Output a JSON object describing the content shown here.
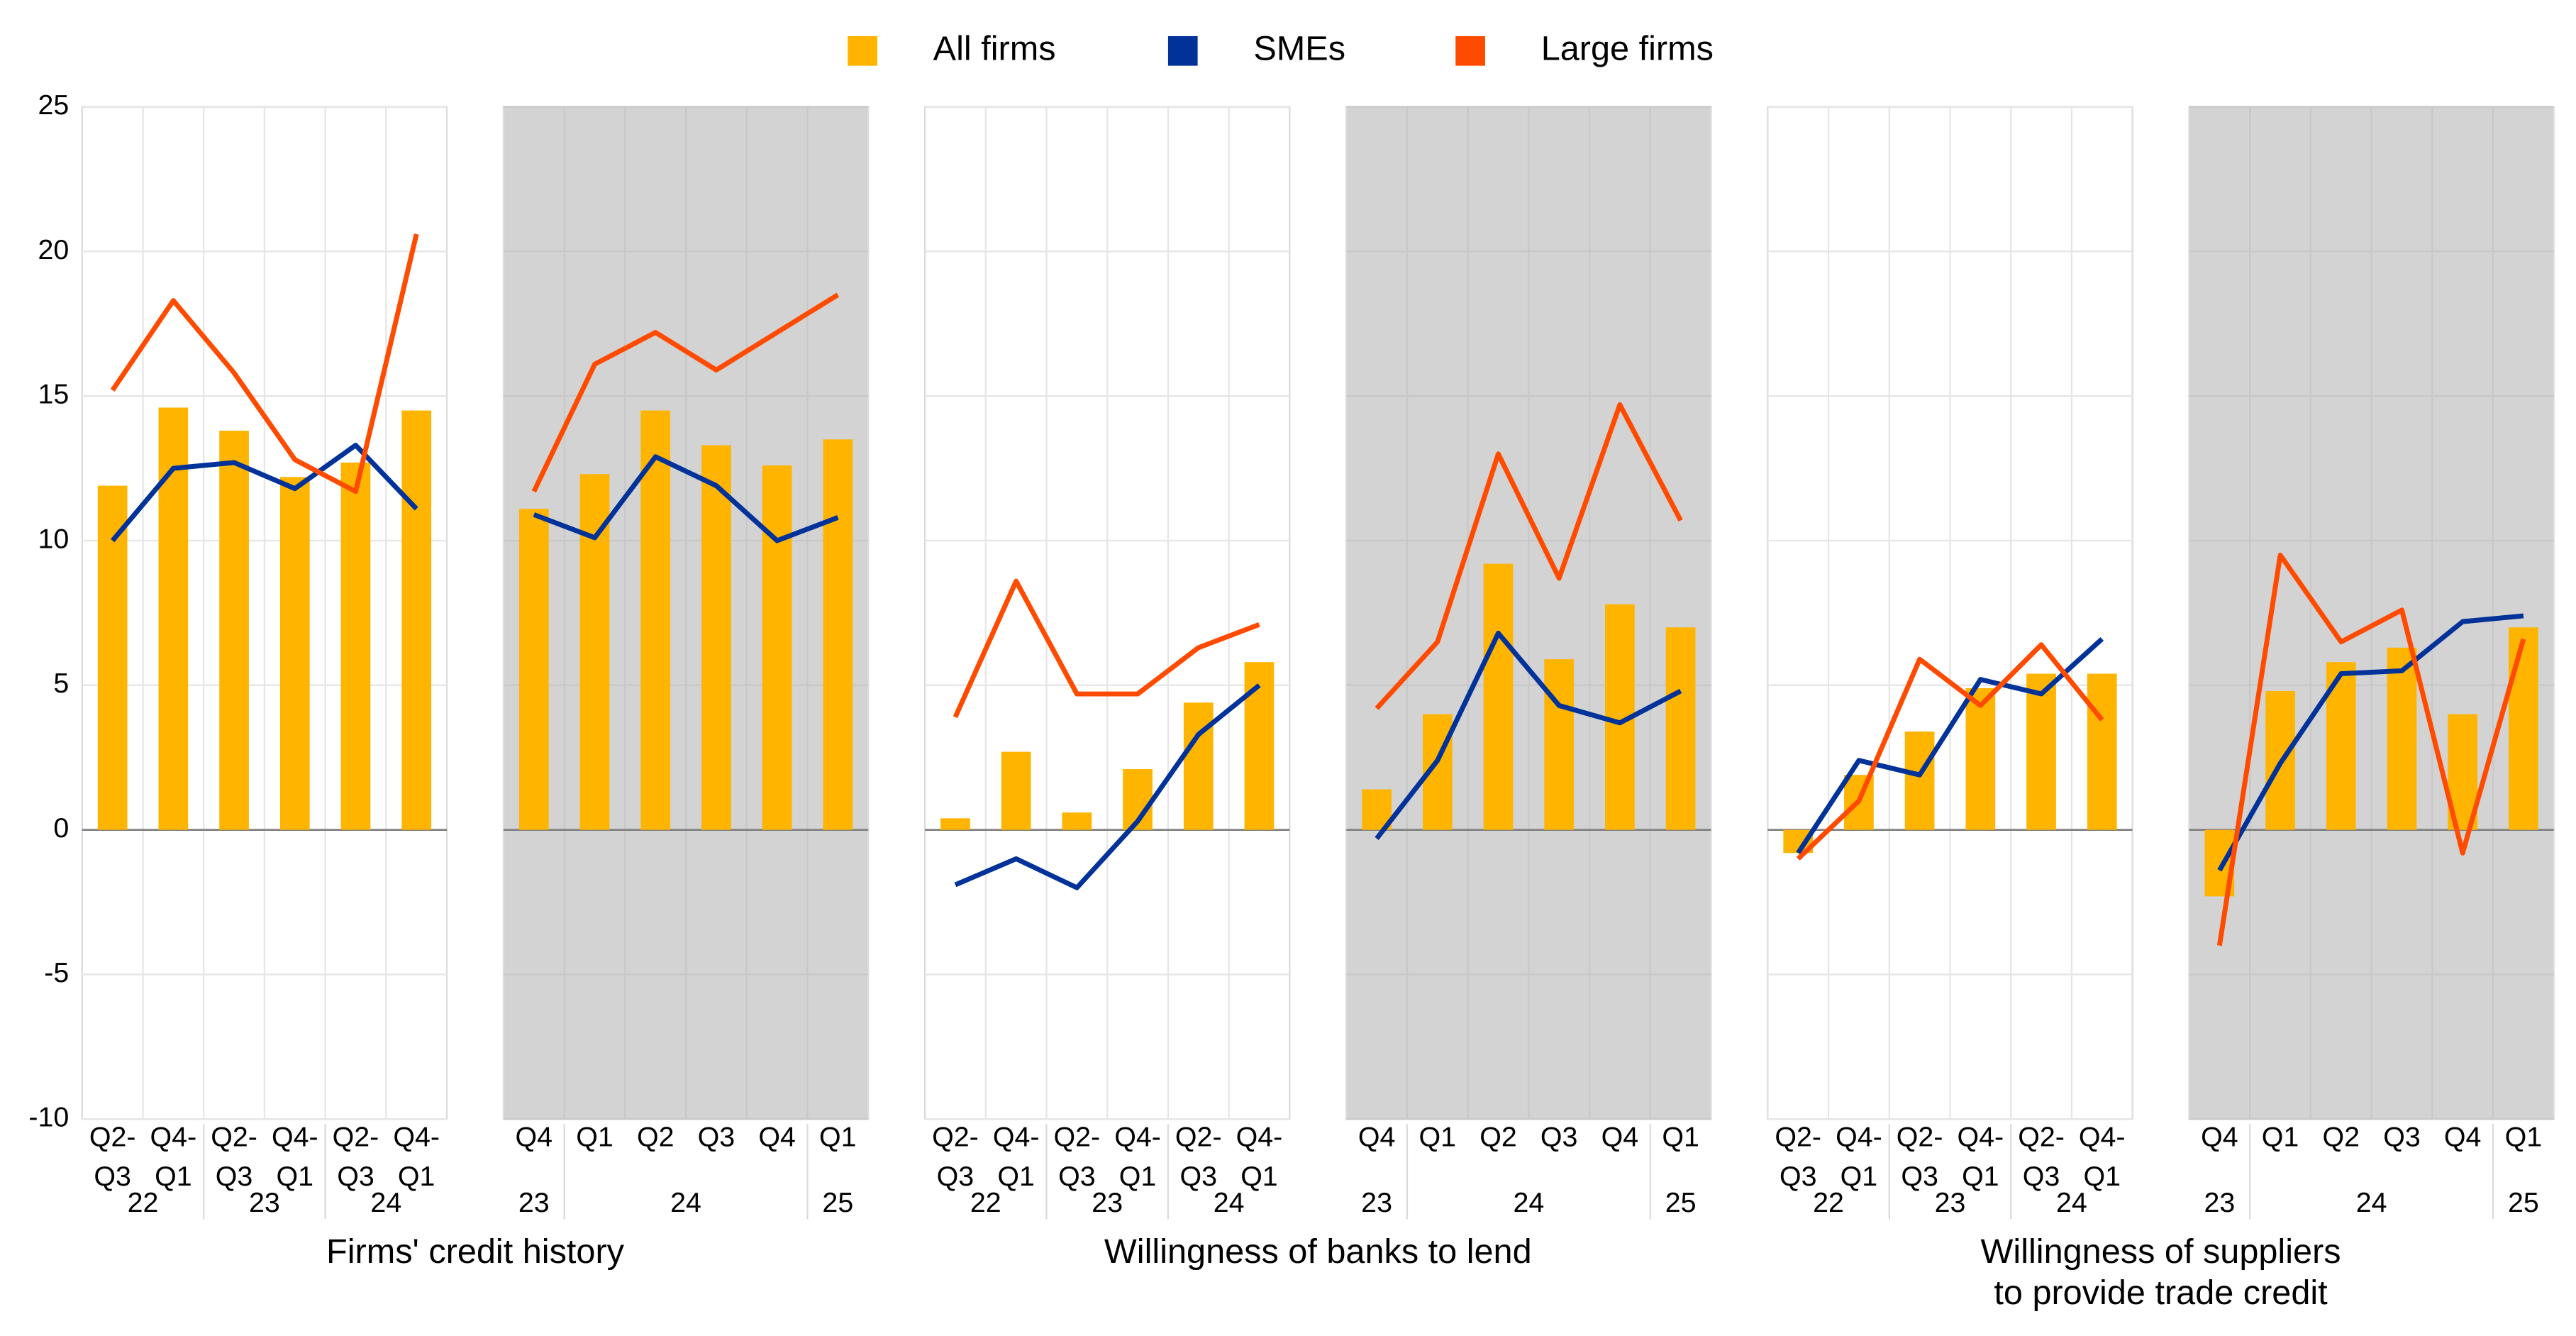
{
  "chart_data": {
    "type": "combo",
    "ylim": [
      -10,
      25
    ],
    "yticks": [
      -10,
      -5,
      0,
      5,
      10,
      15,
      20,
      25
    ],
    "grid": true,
    "legend": "top",
    "series": [
      {
        "name": "All firms",
        "color": "#ffb400",
        "kind": "bar"
      },
      {
        "name": "SMEs",
        "color": "#003299",
        "kind": "line"
      },
      {
        "name": "Large firms",
        "color": "#ff4b00",
        "kind": "line"
      }
    ],
    "groups": [
      {
        "title": [
          "Firms' credit history"
        ],
        "panels": [
          {
            "shaded": false,
            "categories": [
              [
                "Q2-",
                "Q3"
              ],
              [
                "Q4-",
                "Q1"
              ],
              [
                "Q2-",
                "Q3"
              ],
              [
                "Q4-",
                "Q1"
              ],
              [
                "Q2-",
                "Q3"
              ],
              [
                "Q4-",
                "Q1"
              ]
            ],
            "years": [
              "22",
              "22",
              "23",
              "23",
              "24",
              "24"
            ],
            "series": [
              {
                "values": [
                  11.9,
                  14.6,
                  13.8,
                  12.2,
                  12.7,
                  14.5
                ]
              },
              {
                "values": [
                  10.0,
                  12.5,
                  12.7,
                  11.8,
                  13.3,
                  11.1
                ]
              },
              {
                "values": [
                  15.2,
                  18.3,
                  15.8,
                  12.8,
                  11.7,
                  20.6
                ]
              }
            ]
          },
          {
            "shaded": true,
            "categories": [
              [
                "Q4"
              ],
              [
                "Q1"
              ],
              [
                "Q2"
              ],
              [
                "Q3"
              ],
              [
                "Q4"
              ],
              [
                "Q1"
              ]
            ],
            "years": [
              "23",
              "24",
              "24",
              "24",
              "24",
              "25"
            ],
            "series": [
              {
                "values": [
                  11.1,
                  12.3,
                  14.5,
                  13.3,
                  12.6,
                  13.5
                ]
              },
              {
                "values": [
                  10.9,
                  10.1,
                  12.9,
                  11.9,
                  10.0,
                  10.8
                ]
              },
              {
                "values": [
                  11.7,
                  16.1,
                  17.2,
                  15.9,
                  17.2,
                  18.5
                ]
              }
            ]
          }
        ]
      },
      {
        "title": [
          "Willingness of banks to lend"
        ],
        "panels": [
          {
            "shaded": false,
            "categories": [
              [
                "Q2-",
                "Q3"
              ],
              [
                "Q4-",
                "Q1"
              ],
              [
                "Q2-",
                "Q3"
              ],
              [
                "Q4-",
                "Q1"
              ],
              [
                "Q2-",
                "Q3"
              ],
              [
                "Q4-",
                "Q1"
              ]
            ],
            "years": [
              "22",
              "22",
              "23",
              "23",
              "24",
              "24"
            ],
            "series": [
              {
                "values": [
                  0.4,
                  2.7,
                  0.6,
                  2.1,
                  4.4,
                  5.8
                ]
              },
              {
                "values": [
                  -1.9,
                  -1.0,
                  -2.0,
                  0.3,
                  3.3,
                  5.0
                ]
              },
              {
                "values": [
                  3.9,
                  8.6,
                  4.7,
                  4.7,
                  6.3,
                  7.1
                ]
              }
            ]
          },
          {
            "shaded": true,
            "categories": [
              [
                "Q4"
              ],
              [
                "Q1"
              ],
              [
                "Q2"
              ],
              [
                "Q3"
              ],
              [
                "Q4"
              ],
              [
                "Q1"
              ]
            ],
            "years": [
              "23",
              "24",
              "24",
              "24",
              "24",
              "25"
            ],
            "series": [
              {
                "values": [
                  1.4,
                  4.0,
                  9.2,
                  5.9,
                  7.8,
                  7.0
                ]
              },
              {
                "values": [
                  -0.3,
                  2.4,
                  6.8,
                  4.3,
                  3.7,
                  4.8
                ]
              },
              {
                "values": [
                  4.2,
                  6.5,
                  13.0,
                  8.7,
                  14.7,
                  10.7
                ]
              }
            ]
          }
        ]
      },
      {
        "title": [
          "Willingness of suppliers",
          "to provide trade credit"
        ],
        "panels": [
          {
            "shaded": false,
            "categories": [
              [
                "Q2-",
                "Q3"
              ],
              [
                "Q4-",
                "Q1"
              ],
              [
                "Q2-",
                "Q3"
              ],
              [
                "Q4-",
                "Q1"
              ],
              [
                "Q2-",
                "Q3"
              ],
              [
                "Q4-",
                "Q1"
              ]
            ],
            "years": [
              "22",
              "22",
              "23",
              "23",
              "24",
              "24"
            ],
            "series": [
              {
                "values": [
                  -0.8,
                  1.9,
                  3.4,
                  4.9,
                  5.4,
                  5.4
                ]
              },
              {
                "values": [
                  -0.8,
                  2.4,
                  1.9,
                  5.2,
                  4.7,
                  6.6
                ]
              },
              {
                "values": [
                  -1.0,
                  1.0,
                  5.9,
                  4.3,
                  6.4,
                  3.8
                ]
              }
            ]
          },
          {
            "shaded": true,
            "categories": [
              [
                "Q4"
              ],
              [
                "Q1"
              ],
              [
                "Q2"
              ],
              [
                "Q3"
              ],
              [
                "Q4"
              ],
              [
                "Q1"
              ]
            ],
            "years": [
              "23",
              "24",
              "24",
              "24",
              "24",
              "25"
            ],
            "series": [
              {
                "values": [
                  -2.3,
                  4.8,
                  5.8,
                  6.3,
                  4.0,
                  7.0
                ]
              },
              {
                "values": [
                  -1.4,
                  2.3,
                  5.4,
                  5.5,
                  7.2,
                  7.4
                ]
              },
              {
                "values": [
                  -4.0,
                  9.5,
                  6.5,
                  7.6,
                  -0.8,
                  6.6
                ]
              }
            ]
          }
        ]
      }
    ]
  }
}
